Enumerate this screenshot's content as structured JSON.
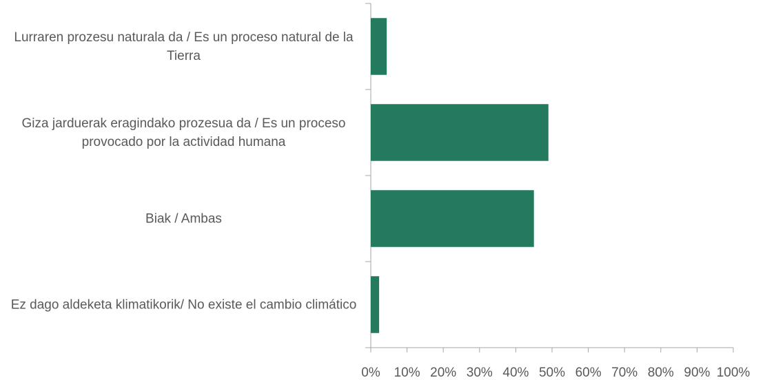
{
  "chart_data": {
    "type": "bar",
    "orientation": "horizontal",
    "categories": [
      "Lurraren prozesu naturala da / Es un proceso natural de la Tierra",
      "Giza jarduerak eragindako prozesua da / Es un proceso provocado por la actividad humana",
      "Biak / Ambas",
      "Ez dago aldeketa klimatikorik/ No existe el cambio climático"
    ],
    "values": [
      4.4,
      49,
      45,
      2.3
    ],
    "color": "#237a5e",
    "xlim": [
      0,
      100
    ],
    "xticks": [
      {
        "value": 0,
        "label": "0%"
      },
      {
        "value": 10,
        "label": "10%"
      },
      {
        "value": 20,
        "label": "20%"
      },
      {
        "value": 30,
        "label": "30%"
      },
      {
        "value": 40,
        "label": "40%"
      },
      {
        "value": 50,
        "label": "50%"
      },
      {
        "value": 60,
        "label": "60%"
      },
      {
        "value": 70,
        "label": "70%"
      },
      {
        "value": 80,
        "label": "80%"
      },
      {
        "value": 90,
        "label": "90%"
      },
      {
        "value": 100,
        "label": "100%"
      }
    ],
    "grid": false
  }
}
